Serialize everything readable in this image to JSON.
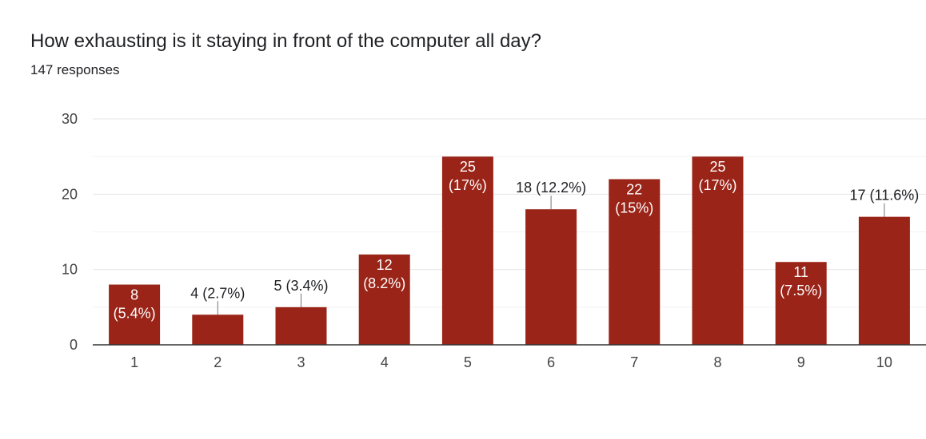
{
  "header": {
    "title": "How exhausting is it staying in front of the computer all day?",
    "subtitle": "147 responses"
  },
  "colors": {
    "bar": "#9a2418",
    "grid": "#e6e6e6",
    "axis": "#333333"
  },
  "chart_data": {
    "type": "bar",
    "categories": [
      "1",
      "2",
      "3",
      "4",
      "5",
      "6",
      "7",
      "8",
      "9",
      "10"
    ],
    "values": [
      8,
      4,
      5,
      12,
      25,
      18,
      22,
      25,
      11,
      17
    ],
    "data_labels": [
      [
        "8",
        "(5.4%)"
      ],
      [
        "4 (2.7%)"
      ],
      [
        "5 (3.4%)"
      ],
      [
        "12",
        "(8.2%)"
      ],
      [
        "25",
        "(17%)"
      ],
      [
        "18 (12.2%)"
      ],
      [
        "22",
        "(15%)"
      ],
      [
        "25",
        "(17%)"
      ],
      [
        "11",
        "(7.5%)"
      ],
      [
        "17 (11.6%)"
      ]
    ],
    "ylim": [
      0,
      30
    ],
    "yticks": [
      "0",
      "10",
      "20",
      "30"
    ],
    "grid": true,
    "legend": "none"
  }
}
